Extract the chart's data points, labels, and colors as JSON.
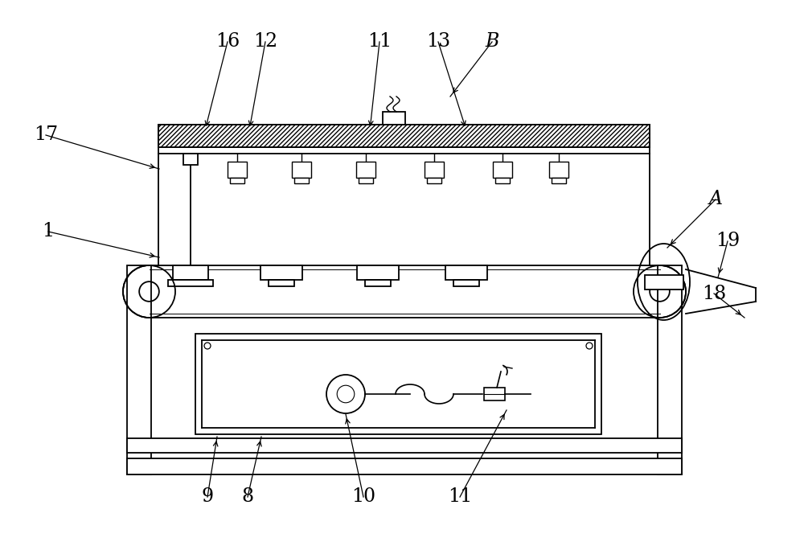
{
  "bg_color": "#ffffff",
  "line_color": "#000000",
  "fig_width": 10.0,
  "fig_height": 6.69
}
